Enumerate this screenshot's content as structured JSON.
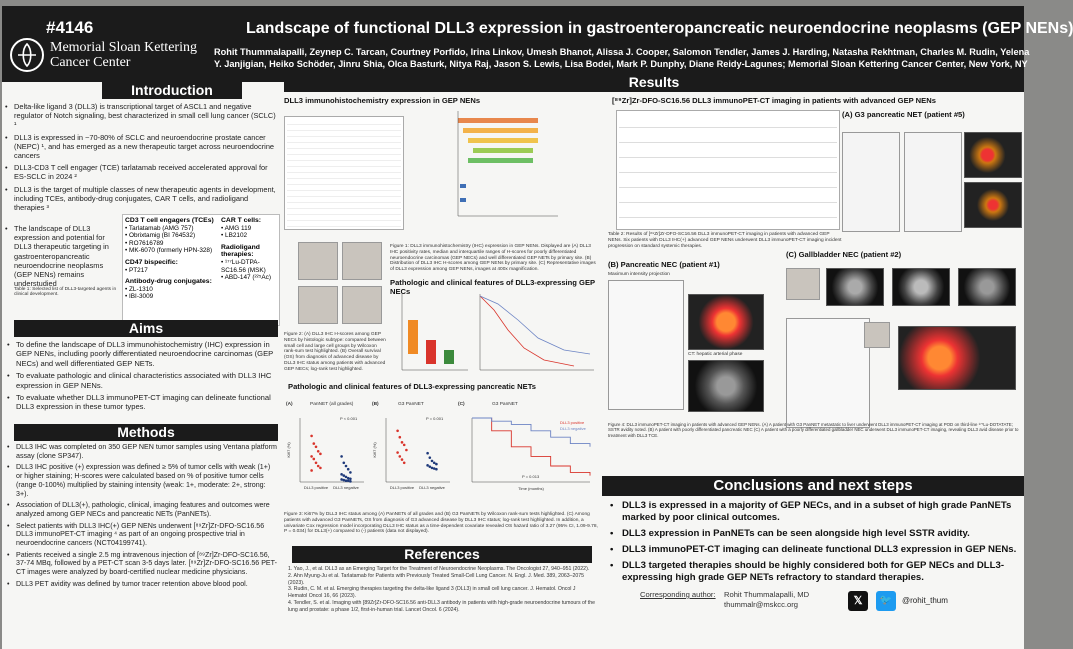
{
  "header": {
    "poster_number": "#4146",
    "institution": [
      "Memorial Sloan Kettering",
      "Cancer Center"
    ],
    "title": "Landscape of functional DLL3 expression in gastroenteropancreatic neuroendocrine neoplasms (GEP NENs)",
    "authors_line1": "Rohit Thummalapalli, Zeynep C. Tarcan, Courtney Porfido, Irina Linkov, Umesh Bhanot, Alissa J. Cooper, Salomon Tendler, James J. Harding, Natasha Rekhtman, Charles M. Rudin, Yelena",
    "authors_line2": "Y. Janjigian, Heiko Schöder, Jinru Shia, Olca Basturk, Nitya Raj, Jason S. Lewis, Lisa Bodei, Mark P. Dunphy, Diane Reidy-Lagunes; Memorial Sloan Kettering Cancer Center, New York, NY"
  },
  "introduction": {
    "heading": "Introduction",
    "bullets": [
      "Delta-like ligand 3 (DLL3) is transcriptional target of ASCL1 and negative regulator of Notch signaling, best characterized in small cell lung cancer (SCLC) ¹",
      "DLL3 is expressed in ~70-80% of SCLC and neuroendocrine prostate cancer (NEPC) ¹, and has emerged as a new therapeutic target across neuroendocrine cancers",
      "DLL3-CD3 T cell engager (TCE) tarlatamab received accelerated approval for ES-SCLC in 2024 ²",
      "DLL3 is the target of multiple classes of new therapeutic agents in development, including TCEs, antibody-drug conjugates, CAR T cells, and radioligand therapies ³",
      "The landscape of DLL3 expression and potential for DLL3 therapeutic targeting in gastroenteropancreatic neuroendocrine neoplasms (GEP NENs) remains understudied"
    ],
    "table_caption": "Table 1: Selected list of DLL3-targeted agents in clinical development.",
    "tce_heading": "CD3 T cell engagers (TCEs)",
    "tce_items": [
      "• Tarlatamab (AMG 757)",
      "• Obrixtamig (BI 764532)",
      "• RO7616789",
      "• MK-6070 (formerly HPN-328)"
    ],
    "cd47_heading": "CD47 bispecific:",
    "cd47_items": [
      "• PT217"
    ],
    "adc_heading": "Antibody-drug conjugates:",
    "adc_items": [
      "• ZL-1310",
      "• IBI-3009"
    ],
    "cart_heading": "CAR T cells:",
    "cart_items": [
      "• AMG 119",
      "• LB2102"
    ],
    "radio_heading": "Radioligand therapies:",
    "radio_items": [
      "• ¹⁷⁷Lu-DTPA-SC16.56 (MSK)",
      "• ABD-147 (²²⁵Ac)"
    ]
  },
  "aims": {
    "heading": "Aims",
    "bullets": [
      "To define the landscape of DLL3 immunohistochemistry (IHC) expression in GEP NENs, including poorly differentiated neuroendocrine carcinomas (GEP NECs) and well differentiated GEP NETs.",
      "To evaluate pathologic and clinical characteristics associated with DLL3 IHC expression in GEP NENs.",
      "To evaluate whether DLL3 immunoPET-CT imaging can delineate functional DLL3 expression in these tumor types."
    ]
  },
  "methods": {
    "heading": "Methods",
    "bullets": [
      "DLL3 IHC was completed on 350 GEP NEN tumor samples using Ventana platform assay (clone SP347).",
      "DLL3 IHC positive (+) expression was defined ≥ 5% of tumor cells with weak (1+) or higher staining; H-scores were calculated based on % of positive tumor cells (range 0-100%) multiplied by staining intensity (weak: 1+, moderate: 2+, strong: 3+).",
      "Association of DLL3(+), pathologic, clinical, imaging features and outcomes were analyzed among GEP NECs and pancreatic NETs (PanNETs).",
      "Select patients with DLL3 IHC(+) GEP NENs underwent [⁸⁹Zr]Zr-DFO-SC16.56 DLL3 immunoPET-CT imaging ⁴ as part of an ongoing prospective trial in neuroendocrine cancers (NCT04199741).",
      "Patients received a single 2.5 mg intravenous injection of [⁸⁹Zr]Zr-DFO-SC16.56, 37-74 MBq, followed by a PET-CT scan 3-5 days later. [⁸⁹Zr]Zr-DFO-SC16.56 PET-CT images were analyzed by board-certified nuclear medicine physicians.",
      "DLL3 PET avidity was defined by tumor tracer retention above blood pool."
    ]
  },
  "results": {
    "heading": "Results",
    "ihc_title": "DLL3 immunohistochemistry expression in GEP NENs",
    "fig1_caption": "Figure 1: DLL3 immunohistochemistry (IHC) expression in GEP NENs. Displayed are (A) DLL3 IHC positivity rates, median and interquartile ranges of H-scores for poorly differentiated neuroendocrine carcinomas (GEP NECs) and well differentiated GEP NETs by primary site. (B) Distribution of DLL3 IHC H-scores among GEP NENs by primary site. (C) Representative images of DLL3 expression among GEP NENs, images at 400x magnification.",
    "path_nec_title": "Pathologic and clinical features of DLL3-expressing GEP NECs",
    "fig2_caption": "Figure 2: (A) DLL3 IHC H-scores among GEP NECs by histologic subtype: compared between small cell and large cell groups by Wilcoxon rank-sum test highlighted. (B) Overall survival (OS) from diagnosis of advanced disease by DLL3 IHC status among patients with advanced GEP NECs; log-rank test highlighted.",
    "path_pan_title": "Pathologic and clinical features of DLL3-expressing pancreatic NETs",
    "fig3_caption": "Figure 3: Ki67% by DLL3 IHC status among (A) PanNETs of all grades and (B) G3 PanNETs by Wilcoxon rank-sum tests highlighted. (C) Among patients with advanced G3 PanNETs, OS from diagnosis of G3 advanced disease by DLL3 IHC status; log-rank test highlighted. In addition, a univariate Cox regression model incorporating DLL3 IHC status as a time-dependent covariate revealed OS hazard ratio of 3.27 (95% CI, 1.09-9.78, P = 0.034) for DLL3(+) compared to (-) patients (data not displayed).",
    "panel_a_label": "(A)",
    "panel_b_label": "(B)",
    "panel_c_label": "(C)",
    "pan_a_title": "PanNET (all grades)",
    "pan_b_title": "G3 PanNET",
    "pan_c_title": "G3 PanNET",
    "p_all": "P < 0.001",
    "p_g3": "P = 0.001",
    "p_os": "P = 0.013",
    "ylabel_h": "DLL3 IHC H-score",
    "ylabel_ki": "Ki67 (%)"
  },
  "references": {
    "heading": "References",
    "items": [
      "1. Yao, J., et al. DLL3 as an Emerging Target for the Treatment of Neuroendocrine Neoplasms. The Oncologist 27, 940–951 (2022).",
      "2. Ahn Myung-Ju et al. Tarlatamab for Patients with Previously Treated Small-Cell Lung Cancer. N. Engl. J. Med. 389, 2063–2075 (2023).",
      "3. Rudin, C. M. et al. Emerging therapies targeting the delta-like ligand 3 (DLL3) in small cell lung cancer. J. Hematol. Oncol J Hematol Oncol 16, 66 (2023).",
      "4. Tendler, S. et al. Imaging with [89Zr]Zr-DFO-SC16.56 anti-DLL3 antibody in patients with high-grade neuroendocrine tumours of the lung and prostate: a phase 1/2, first-in-human trial. Lancet Oncol. 6 (2024)."
    ]
  },
  "immunopet": {
    "title": "[⁸⁹Zr]Zr-DFO-SC16.56 DLL3 immunoPET-CT imaging in patients with advanced GEP NENs",
    "table2_caption": "Table 2: Results of [⁸⁹Zr]Zr-DFO-SC16.56 DLL3 immunoPET-CT imaging in patients with advanced GEP NENs. Six patients with DLL3 IHC(+) advanced GEP NENs underwent DLL3 immunoPET-CT imaging incident progression on standard systemic therapies.",
    "panel_a": "(A) G3 pancreatic NET (patient #5)",
    "panel_b": "(B) Pancreatic NEC (patient #1)",
    "panel_c": "(C) Gallbladder NEC (patient #2)",
    "mip_label": "Maximum intensity projection",
    "ct_label": "CT: hepatic arterial phase",
    "fig4_caption": "Figure 4: DLL3 immunoPET-CT imaging in patients with advanced GEP NENs. (A) A patient with G3 PanNET metastatic to liver underwent DLL3 immunoPET-CT imaging at POD on third-line ¹⁷⁷Lu-DOTATATE; SSTR avidity noted. (B) A patient with poorly differentiated pancreatic NEC (C) A patient with a poorly differentiated gallbladder NEC underwent DLL3 immunoPET-CT imaging, revealing DLL3 avid disease prior to treatment with DLL3 TCE."
  },
  "conclusions": {
    "heading": "Conclusions and next steps",
    "items": [
      "DLL3 is expressed in a majority of GEP NECs, and in a subset of high grade PanNETs marked by poor clinical outcomes.",
      "DLL3 expression in PanNETs can be seen alongside high level SSTR avidity.",
      "DLL3 immunoPET-CT imaging can delineate functional DLL3 expression in GEP NENs.",
      "DLL3 targeted therapies should be highly considered both for GEP NECs and DLL3-expressing high grade GEP NETs refractory to standard therapies."
    ],
    "corresponding_label": "Corresponding author:",
    "author_name": "Rohit Thummalapalli, MD",
    "author_email": "thummalr@mskcc.org",
    "x_glyph": "𝕏",
    "bird_glyph": "🐦",
    "handle": "@rohit_thum"
  },
  "colors": {
    "header_bg": "#1b1b1b",
    "accent_orange": "#f08a24",
    "accent_red": "#d9342b",
    "accent_navy": "#1f3a7a"
  },
  "chart_data": [
    {
      "type": "scatter",
      "title": "PanNET (all grades)",
      "categories": [
        "DLL3 positive",
        "DLL3 negative"
      ],
      "ylabel": "Ki67 (%)",
      "ylim": [
        0,
        100
      ],
      "series": [
        {
          "name": "DLL3 positive",
          "values": [
            72,
            60,
            55,
            48,
            44,
            40,
            36,
            30,
            25,
            22,
            18
          ]
        },
        {
          "name": "DLL3 negative",
          "values": [
            40,
            30,
            25,
            20,
            15,
            12,
            10,
            8,
            6,
            5,
            4,
            3,
            2,
            2,
            1
          ]
        }
      ]
    },
    {
      "type": "scatter",
      "title": "G3 PanNET",
      "categories": [
        "DLL3 positive",
        "DLL3 negative"
      ],
      "ylabel": "Ki67 (%)",
      "ylim": [
        0,
        100
      ],
      "series": [
        {
          "name": "DLL3 positive",
          "values": [
            80,
            70,
            62,
            58,
            50,
            46,
            40,
            35,
            30
          ]
        },
        {
          "name": "DLL3 negative",
          "values": [
            45,
            38,
            33,
            30,
            28,
            26,
            24,
            22,
            21,
            20
          ]
        }
      ]
    },
    {
      "type": "line",
      "title": "G3 PanNET",
      "xlabel": "Time (months)",
      "ylabel": "OS probability",
      "ylim": [
        0,
        1
      ],
      "series": [
        {
          "name": "DLL3 positive",
          "x": [
            0,
            6,
            12,
            18,
            24,
            30,
            36
          ],
          "values": [
            1.0,
            0.8,
            0.55,
            0.4,
            0.25,
            0.15,
            0.1
          ]
        },
        {
          "name": "DLL3 negative",
          "x": [
            0,
            6,
            12,
            18,
            24,
            30,
            36
          ],
          "values": [
            1.0,
            0.95,
            0.9,
            0.8,
            0.7,
            0.6,
            0.55
          ]
        }
      ]
    }
  ]
}
